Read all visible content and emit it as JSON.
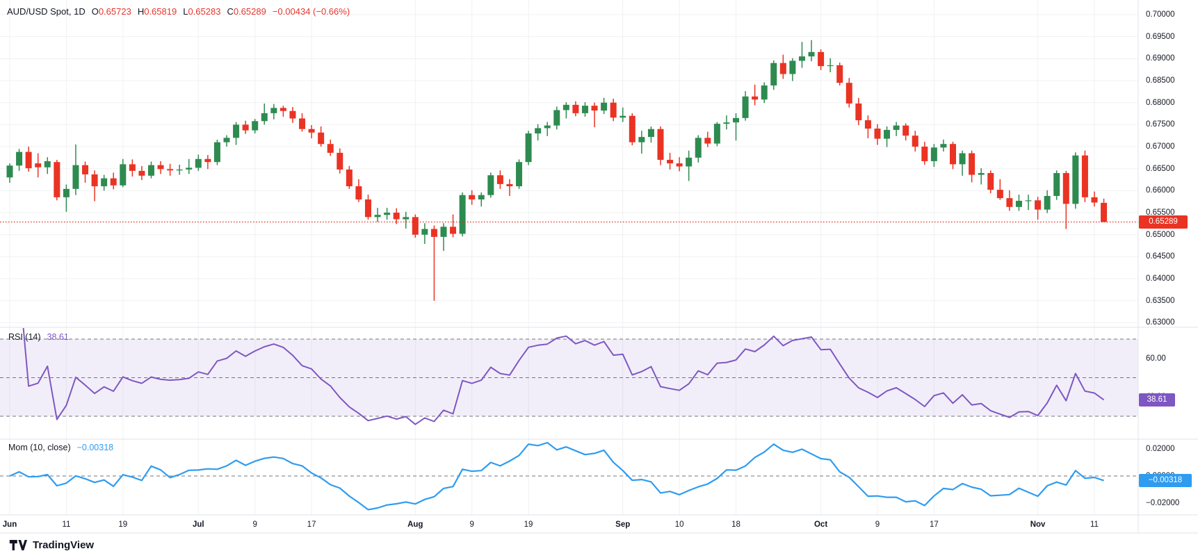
{
  "watermark": "TradingView",
  "main_legend": {
    "title": "AUD/USD Spot, 1D",
    "o_prefix": "O",
    "o": "0.65723",
    "h_prefix": "H",
    "h": "0.65819",
    "l_prefix": "L",
    "l": "0.65283",
    "c_prefix": "C",
    "c": "0.65289",
    "change": "−0.00434 (−0.66%)"
  },
  "rsi_legend": {
    "title": "RSI (14)",
    "value": "38.61"
  },
  "mom_legend": {
    "title": "Mom (10, close)",
    "value": "−0.00318"
  },
  "colors": {
    "up": "#2e8b50",
    "down": "#ea3323",
    "rsi": "#7e57c2",
    "rsi_band": "rgba(126,87,194,0.10)",
    "mom": "#2f9cf0",
    "grid": "#f0f1f3",
    "border": "#e0e3eb",
    "dashed": "#70747f",
    "text": "#131722",
    "badge_text": "#ffffff"
  },
  "chart_data": {
    "type": "candlestick",
    "title": "AUD/USD Spot, 1D",
    "price_axis": {
      "max": 0.7,
      "min": 0.63,
      "step": 0.005,
      "tick_labels": [
        "0.70000",
        "0.69500",
        "0.69000",
        "0.68500",
        "0.68000",
        "0.67500",
        "0.67000",
        "0.66500",
        "0.66000",
        "0.65500",
        "0.65000",
        "0.64500",
        "0.64000",
        "0.63500",
        "0.63000"
      ],
      "last_price": {
        "text": "0.65289",
        "v": 0.65289
      }
    },
    "rsi_pane": {
      "levels": [
        70,
        50,
        30
      ],
      "axis_ticks": [
        {
          "text": "60.00",
          "v": 60
        },
        {
          "text": "40.00",
          "v": 40
        }
      ],
      "badge": {
        "text": "38.61",
        "v": 38.61
      },
      "period": 14
    },
    "mom_pane": {
      "axis_ticks": [
        {
          "text": "0.02000",
          "v": 0.02
        },
        {
          "text": "0.00000",
          "v": 0
        },
        {
          "text": "−0.02000",
          "v": -0.02
        }
      ],
      "badge": {
        "text": "−0.00318",
        "v": -0.00318
      },
      "period": 10
    },
    "time_ticks": [
      {
        "t": "Jun",
        "i": 0,
        "b": 1
      },
      {
        "t": "11",
        "i": 6
      },
      {
        "t": "19",
        "i": 12
      },
      {
        "t": "Jul",
        "i": 20,
        "b": 1
      },
      {
        "t": "9",
        "i": 26
      },
      {
        "t": "17",
        "i": 32
      },
      {
        "t": "Aug",
        "i": 43,
        "b": 1
      },
      {
        "t": "9",
        "i": 49
      },
      {
        "t": "19",
        "i": 55
      },
      {
        "t": "Sep",
        "i": 65,
        "b": 1
      },
      {
        "t": "10",
        "i": 71
      },
      {
        "t": "18",
        "i": 77
      },
      {
        "t": "Oct",
        "i": 86,
        "b": 1
      },
      {
        "t": "9",
        "i": 92
      },
      {
        "t": "17",
        "i": 98
      },
      {
        "t": "Nov",
        "i": 109,
        "b": 1
      },
      {
        "t": "11",
        "i": 115
      }
    ],
    "candles": [
      [
        "06-03",
        0.663,
        0.6662,
        0.6618,
        0.6657
      ],
      [
        "06-04",
        0.6657,
        0.6695,
        0.6645,
        0.6688
      ],
      [
        "06-05",
        0.6688,
        0.67,
        0.6643,
        0.6651
      ],
      [
        "06-06",
        0.6662,
        0.6685,
        0.663,
        0.6653
      ],
      [
        "06-07",
        0.6653,
        0.6676,
        0.6638,
        0.6667
      ],
      [
        "06-10",
        0.6665,
        0.667,
        0.6578,
        0.6585
      ],
      [
        "06-11",
        0.6585,
        0.6614,
        0.6552,
        0.6604
      ],
      [
        "06-12",
        0.6604,
        0.6705,
        0.659,
        0.6658
      ],
      [
        "06-13",
        0.6658,
        0.6666,
        0.6618,
        0.6637
      ],
      [
        "06-14",
        0.6637,
        0.6646,
        0.6576,
        0.661
      ],
      [
        "06-17",
        0.661,
        0.6636,
        0.66,
        0.6628
      ],
      [
        "06-18",
        0.6628,
        0.6641,
        0.6603,
        0.6612
      ],
      [
        "06-19",
        0.6612,
        0.6672,
        0.6608,
        0.666
      ],
      [
        "06-20",
        0.666,
        0.6671,
        0.6632,
        0.6645
      ],
      [
        "06-21",
        0.6645,
        0.6656,
        0.6624,
        0.6634
      ],
      [
        "06-24",
        0.6634,
        0.6666,
        0.6628,
        0.6658
      ],
      [
        "06-25",
        0.6658,
        0.6667,
        0.6638,
        0.6649
      ],
      [
        "06-26",
        0.6649,
        0.6661,
        0.6634,
        0.6646
      ],
      [
        "06-27",
        0.6646,
        0.6659,
        0.6636,
        0.6648
      ],
      [
        "06-28",
        0.6648,
        0.6672,
        0.6638,
        0.6652
      ],
      [
        "07-01",
        0.6652,
        0.6682,
        0.6645,
        0.6672
      ],
      [
        "07-02",
        0.6672,
        0.6681,
        0.6649,
        0.6665
      ],
      [
        "07-03",
        0.6665,
        0.6716,
        0.6658,
        0.671
      ],
      [
        "07-04",
        0.671,
        0.6726,
        0.67,
        0.672
      ],
      [
        "07-05",
        0.672,
        0.6756,
        0.6704,
        0.675
      ],
      [
        "07-08",
        0.675,
        0.6759,
        0.6729,
        0.6737
      ],
      [
        "07-09",
        0.6737,
        0.6763,
        0.673,
        0.6758
      ],
      [
        "07-10",
        0.6758,
        0.6798,
        0.675,
        0.6776
      ],
      [
        "07-11",
        0.6776,
        0.6797,
        0.6762,
        0.6788
      ],
      [
        "07-12",
        0.6788,
        0.6793,
        0.6768,
        0.6781
      ],
      [
        "07-15",
        0.6781,
        0.679,
        0.6754,
        0.6764
      ],
      [
        "07-16",
        0.6764,
        0.6776,
        0.6734,
        0.674
      ],
      [
        "07-17",
        0.674,
        0.6749,
        0.6719,
        0.6732
      ],
      [
        "07-18",
        0.6732,
        0.6746,
        0.67,
        0.6706
      ],
      [
        "07-19",
        0.6706,
        0.6716,
        0.6679,
        0.6686
      ],
      [
        "07-22",
        0.6686,
        0.6696,
        0.6639,
        0.6648
      ],
      [
        "07-23",
        0.6648,
        0.6656,
        0.6604,
        0.661
      ],
      [
        "07-24",
        0.661,
        0.6626,
        0.6574,
        0.658
      ],
      [
        "07-25",
        0.658,
        0.6591,
        0.6534,
        0.654
      ],
      [
        "07-26",
        0.654,
        0.6561,
        0.6529,
        0.6545
      ],
      [
        "07-29",
        0.6545,
        0.6561,
        0.6534,
        0.655
      ],
      [
        "07-30",
        0.655,
        0.656,
        0.6524,
        0.6535
      ],
      [
        "07-31",
        0.6535,
        0.6552,
        0.6514,
        0.654
      ],
      [
        "08-01",
        0.654,
        0.6546,
        0.6493,
        0.65
      ],
      [
        "08-02",
        0.65,
        0.6526,
        0.6479,
        0.6513
      ],
      [
        "08-05",
        0.6513,
        0.6521,
        0.635,
        0.6495
      ],
      [
        "08-06",
        0.6495,
        0.6526,
        0.6463,
        0.6518
      ],
      [
        "08-07",
        0.6518,
        0.6546,
        0.6494,
        0.6502
      ],
      [
        "08-08",
        0.6502,
        0.6596,
        0.6496,
        0.659
      ],
      [
        "08-09",
        0.659,
        0.6601,
        0.6568,
        0.658
      ],
      [
        "08-12",
        0.658,
        0.6596,
        0.6564,
        0.659
      ],
      [
        "08-13",
        0.659,
        0.6641,
        0.6584,
        0.6635
      ],
      [
        "08-14",
        0.6635,
        0.6646,
        0.6604,
        0.6615
      ],
      [
        "08-15",
        0.6615,
        0.6626,
        0.6588,
        0.661
      ],
      [
        "08-16",
        0.661,
        0.6671,
        0.6604,
        0.6665
      ],
      [
        "08-19",
        0.6665,
        0.6736,
        0.6658,
        0.673
      ],
      [
        "08-20",
        0.673,
        0.6751,
        0.6714,
        0.6742
      ],
      [
        "08-21",
        0.6742,
        0.6756,
        0.6724,
        0.6748
      ],
      [
        "08-22",
        0.6748,
        0.6791,
        0.6739,
        0.6783
      ],
      [
        "08-23",
        0.6783,
        0.6801,
        0.6764,
        0.6795
      ],
      [
        "08-26",
        0.6795,
        0.6803,
        0.6769,
        0.6776
      ],
      [
        "08-27",
        0.6776,
        0.6801,
        0.6768,
        0.6793
      ],
      [
        "08-28",
        0.6793,
        0.68,
        0.6744,
        0.6782
      ],
      [
        "08-29",
        0.6782,
        0.6811,
        0.6774,
        0.68
      ],
      [
        "08-30",
        0.68,
        0.6809,
        0.6758,
        0.6766
      ],
      [
        "09-02",
        0.6766,
        0.6789,
        0.6756,
        0.677
      ],
      [
        "09-03",
        0.677,
        0.6776,
        0.6703,
        0.671
      ],
      [
        "09-04",
        0.671,
        0.6736,
        0.6684,
        0.6722
      ],
      [
        "09-05",
        0.6722,
        0.6746,
        0.6709,
        0.674
      ],
      [
        "09-06",
        0.674,
        0.6746,
        0.6658,
        0.667
      ],
      [
        "09-09",
        0.667,
        0.6686,
        0.6648,
        0.6662
      ],
      [
        "09-10",
        0.6662,
        0.6676,
        0.6644,
        0.6655
      ],
      [
        "09-11",
        0.6655,
        0.6691,
        0.6622,
        0.6675
      ],
      [
        "09-12",
        0.6675,
        0.6726,
        0.6664,
        0.672
      ],
      [
        "09-13",
        0.672,
        0.6734,
        0.6699,
        0.6707
      ],
      [
        "09-16",
        0.6707,
        0.6756,
        0.6701,
        0.6752
      ],
      [
        "09-17",
        0.6752,
        0.6771,
        0.6739,
        0.6755
      ],
      [
        "09-18",
        0.6755,
        0.6776,
        0.6714,
        0.6765
      ],
      [
        "09-19",
        0.6765,
        0.6826,
        0.6759,
        0.6814
      ],
      [
        "09-20",
        0.6814,
        0.6841,
        0.6794,
        0.6807
      ],
      [
        "09-23",
        0.6807,
        0.6846,
        0.6799,
        0.6839
      ],
      [
        "09-24",
        0.6839,
        0.6896,
        0.6829,
        0.689
      ],
      [
        "09-25",
        0.689,
        0.6909,
        0.6854,
        0.6865
      ],
      [
        "09-26",
        0.6865,
        0.6901,
        0.6849,
        0.6895
      ],
      [
        "09-27",
        0.6895,
        0.6938,
        0.6879,
        0.6905
      ],
      [
        "09-30",
        0.6905,
        0.6942,
        0.6894,
        0.6915
      ],
      [
        "10-01",
        0.6915,
        0.6921,
        0.6874,
        0.6883
      ],
      [
        "10-02",
        0.6883,
        0.6901,
        0.6869,
        0.6885
      ],
      [
        "10-03",
        0.6885,
        0.6891,
        0.6839,
        0.6845
      ],
      [
        "10-04",
        0.6845,
        0.6856,
        0.6789,
        0.6798
      ],
      [
        "10-07",
        0.6798,
        0.6811,
        0.6749,
        0.676
      ],
      [
        "10-08",
        0.676,
        0.6771,
        0.6719,
        0.6741
      ],
      [
        "10-09",
        0.6741,
        0.6751,
        0.6704,
        0.6718
      ],
      [
        "10-10",
        0.6718,
        0.6746,
        0.6699,
        0.6738
      ],
      [
        "10-11",
        0.6738,
        0.6756,
        0.6724,
        0.6748
      ],
      [
        "10-14",
        0.6748,
        0.6753,
        0.6714,
        0.6725
      ],
      [
        "10-15",
        0.6725,
        0.6736,
        0.6689,
        0.67
      ],
      [
        "10-16",
        0.67,
        0.6711,
        0.6659,
        0.6667
      ],
      [
        "10-17",
        0.6667,
        0.6706,
        0.6654,
        0.6698
      ],
      [
        "10-18",
        0.6698,
        0.6716,
        0.6689,
        0.6706
      ],
      [
        "10-21",
        0.6706,
        0.6711,
        0.6649,
        0.666
      ],
      [
        "10-22",
        0.666,
        0.6691,
        0.6634,
        0.6685
      ],
      [
        "10-23",
        0.6685,
        0.6691,
        0.6619,
        0.6636
      ],
      [
        "10-24",
        0.6636,
        0.6651,
        0.6614,
        0.664
      ],
      [
        "10-25",
        0.664,
        0.6646,
        0.6594,
        0.6602
      ],
      [
        "10-28",
        0.6602,
        0.6626,
        0.6579,
        0.6583
      ],
      [
        "10-29",
        0.6583,
        0.6601,
        0.6554,
        0.6563
      ],
      [
        "10-30",
        0.6563,
        0.6591,
        0.6554,
        0.6577
      ],
      [
        "10-31",
        0.6577,
        0.6591,
        0.6556,
        0.6578
      ],
      [
        "11-01",
        0.6578,
        0.6586,
        0.6534,
        0.6557
      ],
      [
        "11-04",
        0.6557,
        0.6601,
        0.6549,
        0.6588
      ],
      [
        "11-05",
        0.6588,
        0.6646,
        0.6579,
        0.664
      ],
      [
        "11-06",
        0.664,
        0.6645,
        0.6513,
        0.657
      ],
      [
        "11-07",
        0.657,
        0.6687,
        0.6559,
        0.668
      ],
      [
        "11-08",
        0.668,
        0.6691,
        0.6574,
        0.6585
      ],
      [
        "11-11",
        0.6585,
        0.6598,
        0.6564,
        0.6573
      ],
      [
        "11-12",
        0.65723,
        0.65819,
        0.65283,
        0.65289
      ]
    ]
  }
}
